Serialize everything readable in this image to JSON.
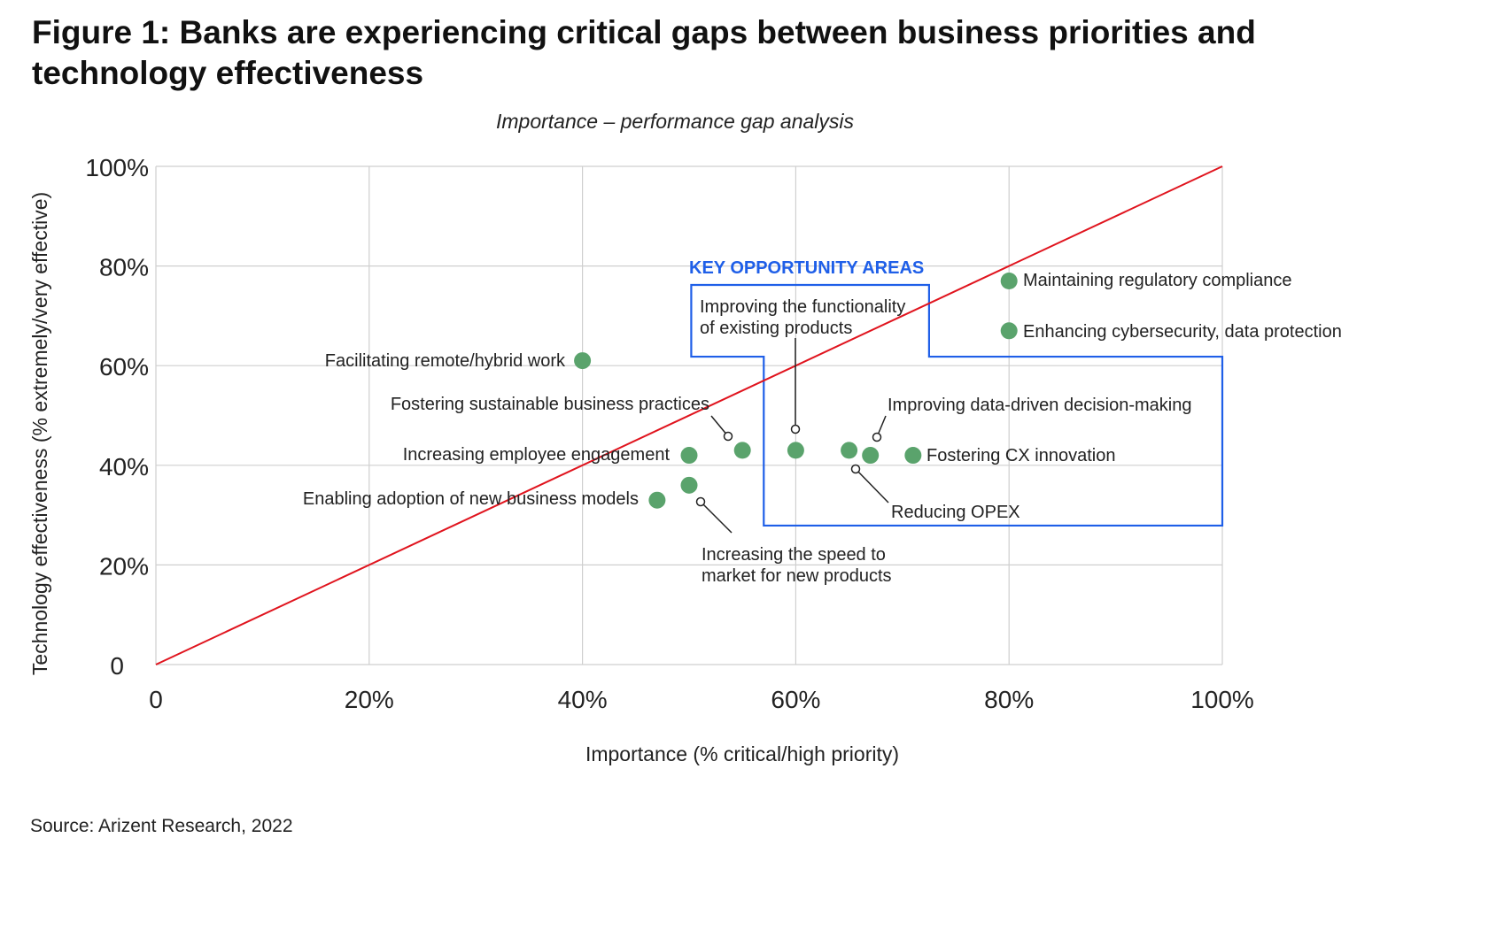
{
  "title": "Figure 1: Banks are experiencing critical gaps between business priorities and technology effectiveness",
  "source": "Source: Arizent Research, 2022",
  "chart_data": {
    "type": "scatter",
    "subtitle": "Importance – performance gap analysis",
    "xlabel": "Importance (% critical/high priority)",
    "ylabel": "Technology effectiveness (% extremely/very effective)",
    "xlim": [
      0,
      100
    ],
    "ylim": [
      0,
      100
    ],
    "x_ticks": [
      "0",
      "20%",
      "40%",
      "60%",
      "80%",
      "100%"
    ],
    "y_ticks": [
      "0",
      "20%",
      "40%",
      "60%",
      "80%",
      "100%"
    ],
    "grid": true,
    "reference_line": {
      "label": "",
      "from": [
        0,
        0
      ],
      "to": [
        100,
        100
      ],
      "color": "#e0141e"
    },
    "region": {
      "label": "KEY OPPORTUNITY AREAS",
      "color": "#1f5fe8",
      "polygon": [
        [
          50.2,
          76.2
        ],
        [
          72.5,
          76.2
        ],
        [
          72.5,
          61.8
        ],
        [
          100,
          61.8
        ],
        [
          100,
          27.9
        ],
        [
          57.0,
          27.9
        ],
        [
          57.0,
          61.8
        ],
        [
          50.2,
          61.8
        ]
      ]
    },
    "point_color": "#5aa36c",
    "points": [
      {
        "label": "Facilitating remote/hybrid work",
        "x": 40,
        "y": 61
      },
      {
        "label": "Increasing employee engagement",
        "x": 50,
        "y": 42
      },
      {
        "label": "Fostering sustainable business practices",
        "x": 55,
        "y": 43
      },
      {
        "label": "Improving the functionality of existing products",
        "x": 60,
        "y": 43
      },
      {
        "label": "Improving data-driven decision-making",
        "x": 65,
        "y": 43
      },
      {
        "label": "Reducing OPEX",
        "x": 67,
        "y": 42
      },
      {
        "label": "Fostering CX innovation",
        "x": 71,
        "y": 42
      },
      {
        "label": "Enabling adoption of new business models",
        "x": 47,
        "y": 33
      },
      {
        "label": "Increasing the speed to market for new products",
        "x": 50,
        "y": 36
      },
      {
        "label": "Maintaining regulatory compliance",
        "x": 80,
        "y": 77
      },
      {
        "label": "Enhancing cybersecurity, data protection",
        "x": 80,
        "y": 67
      }
    ]
  }
}
